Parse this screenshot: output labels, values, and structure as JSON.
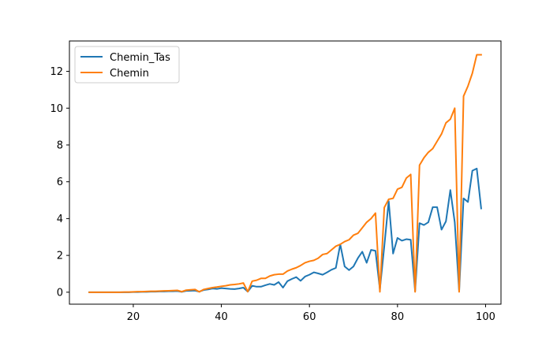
{
  "chart_data": {
    "type": "line",
    "title": "",
    "xlabel": "",
    "ylabel": "",
    "xlim": [
      5.5,
      103.5
    ],
    "ylim": [
      -0.65,
      13.65
    ],
    "xticks": [
      20,
      40,
      60,
      80,
      100
    ],
    "yticks": [
      0,
      2,
      4,
      6,
      8,
      10,
      12
    ],
    "grid": false,
    "legend_position": "top-left",
    "x": [
      10,
      11,
      12,
      13,
      14,
      15,
      16,
      17,
      18,
      19,
      20,
      21,
      22,
      23,
      24,
      25,
      26,
      27,
      28,
      29,
      30,
      31,
      32,
      33,
      34,
      35,
      36,
      37,
      38,
      39,
      40,
      41,
      42,
      43,
      44,
      45,
      46,
      47,
      48,
      49,
      50,
      51,
      52,
      53,
      54,
      55,
      56,
      57,
      58,
      59,
      60,
      61,
      62,
      63,
      64,
      65,
      66,
      67,
      68,
      69,
      70,
      71,
      72,
      73,
      74,
      75,
      76,
      77,
      78,
      79,
      80,
      81,
      82,
      83,
      84,
      85,
      86,
      87,
      88,
      89,
      90,
      91,
      92,
      93,
      94,
      95,
      96,
      97,
      98,
      99
    ],
    "series": [
      {
        "name": "Chemin_Tas",
        "color": "#1f77b4",
        "values": [
          0,
          0,
          0,
          0,
          0,
          0,
          0,
          0,
          0,
          0,
          0.01,
          0.01,
          0.02,
          0.02,
          0.03,
          0.03,
          0.04,
          0.04,
          0.05,
          0.05,
          0.06,
          0.02,
          0.07,
          0.08,
          0.09,
          0.03,
          0.12,
          0.15,
          0.2,
          0.18,
          0.22,
          0.2,
          0.18,
          0.17,
          0.2,
          0.25,
          0.03,
          0.35,
          0.3,
          0.3,
          0.38,
          0.45,
          0.4,
          0.55,
          0.25,
          0.6,
          0.72,
          0.82,
          0.62,
          0.85,
          0.95,
          1.08,
          1.02,
          0.95,
          1.08,
          1.22,
          1.32,
          2.6,
          1.4,
          1.2,
          1.4,
          1.85,
          2.2,
          1.6,
          2.3,
          2.25,
          0.15,
          2.5,
          4.95,
          2.1,
          2.95,
          2.8,
          2.88,
          2.85,
          0.05,
          3.75,
          3.65,
          3.8,
          4.62,
          4.62,
          3.4,
          3.85,
          5.55,
          3.8,
          0.05,
          5.1,
          4.9,
          6.6,
          6.72,
          4.55
        ]
      },
      {
        "name": "Chemin",
        "color": "#ff7f0e",
        "values": [
          0,
          0,
          0,
          0,
          0,
          0,
          0,
          0,
          0.01,
          0.01,
          0.02,
          0.03,
          0.03,
          0.04,
          0.05,
          0.05,
          0.06,
          0.07,
          0.08,
          0.09,
          0.1,
          0.03,
          0.11,
          0.13,
          0.15,
          0.02,
          0.15,
          0.2,
          0.25,
          0.28,
          0.32,
          0.35,
          0.4,
          0.42,
          0.45,
          0.5,
          0.03,
          0.6,
          0.65,
          0.75,
          0.75,
          0.88,
          0.95,
          0.98,
          0.98,
          1.15,
          1.25,
          1.33,
          1.45,
          1.6,
          1.68,
          1.73,
          1.85,
          2.05,
          2.1,
          2.3,
          2.5,
          2.6,
          2.75,
          2.85,
          3.1,
          3.2,
          3.5,
          3.8,
          4.0,
          4.3,
          0.02,
          4.6,
          5.05,
          5.1,
          5.6,
          5.7,
          6.2,
          6.4,
          0.02,
          6.9,
          7.3,
          7.6,
          7.8,
          8.2,
          8.6,
          9.2,
          9.4,
          10.0,
          0.02,
          10.65,
          11.2,
          11.9,
          12.9,
          12.9
        ]
      }
    ]
  }
}
